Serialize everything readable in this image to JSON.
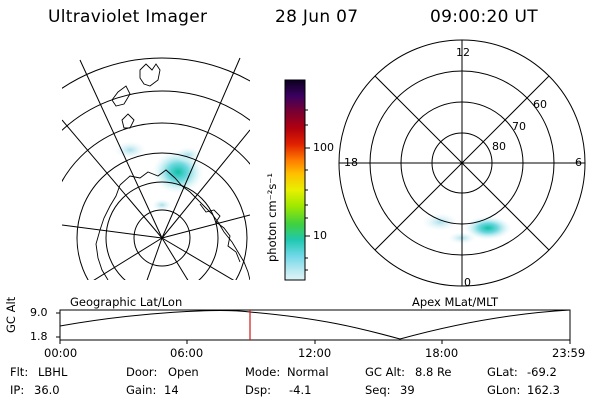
{
  "header": {
    "title": "Ultraviolet Imager",
    "date": "28 Jun 07",
    "time": "09:00:20 UT"
  },
  "geo_panel": {
    "label": "Geographic Lat/Lon"
  },
  "apex_panel": {
    "label": "Apex MLat/MLT",
    "mlt_labels": {
      "top": "12",
      "left": "18",
      "right": "6",
      "bottom": "0"
    },
    "lat_labels": [
      "60",
      "70",
      "80"
    ]
  },
  "colorbar": {
    "unit_label": "photon cm⁻²s⁻¹",
    "ticks": [
      "100",
      "10"
    ],
    "colors": [
      "#0a0020",
      "#3b0060",
      "#7a0030",
      "#b00010",
      "#e02000",
      "#ff7a00",
      "#ffc000",
      "#e8f000",
      "#a0e800",
      "#40d040",
      "#20c8b0",
      "#70d8e8",
      "#b8e8f0",
      "#e0f4f8"
    ]
  },
  "timeline": {
    "axis_label": "GC Alt",
    "y_ticks": [
      "9.0",
      "1.8"
    ],
    "x_ticks": [
      "00:00",
      "06:00",
      "12:00",
      "18:00",
      "23:59"
    ],
    "marker_color": "#d01818"
  },
  "info": {
    "flt_label": "Flt:",
    "flt_value": "LBHL",
    "ip_label": "IP:",
    "ip_value": "36.0",
    "door_label": "Door:",
    "door_value": "Open",
    "gain_label": "Gain:",
    "gain_value": "14",
    "mode_label": "Mode:",
    "mode_value": "Normal",
    "dsp_label": "Dsp:",
    "dsp_value": "-4.1",
    "gcalt_label": "GC Alt:",
    "gcalt_value": "8.8 Re",
    "seq_label": "Seq:",
    "seq_value": "39",
    "glat_label": "GLat:",
    "glat_value": "-69.2",
    "glon_label": "GLon:",
    "glon_value": "162.3"
  }
}
